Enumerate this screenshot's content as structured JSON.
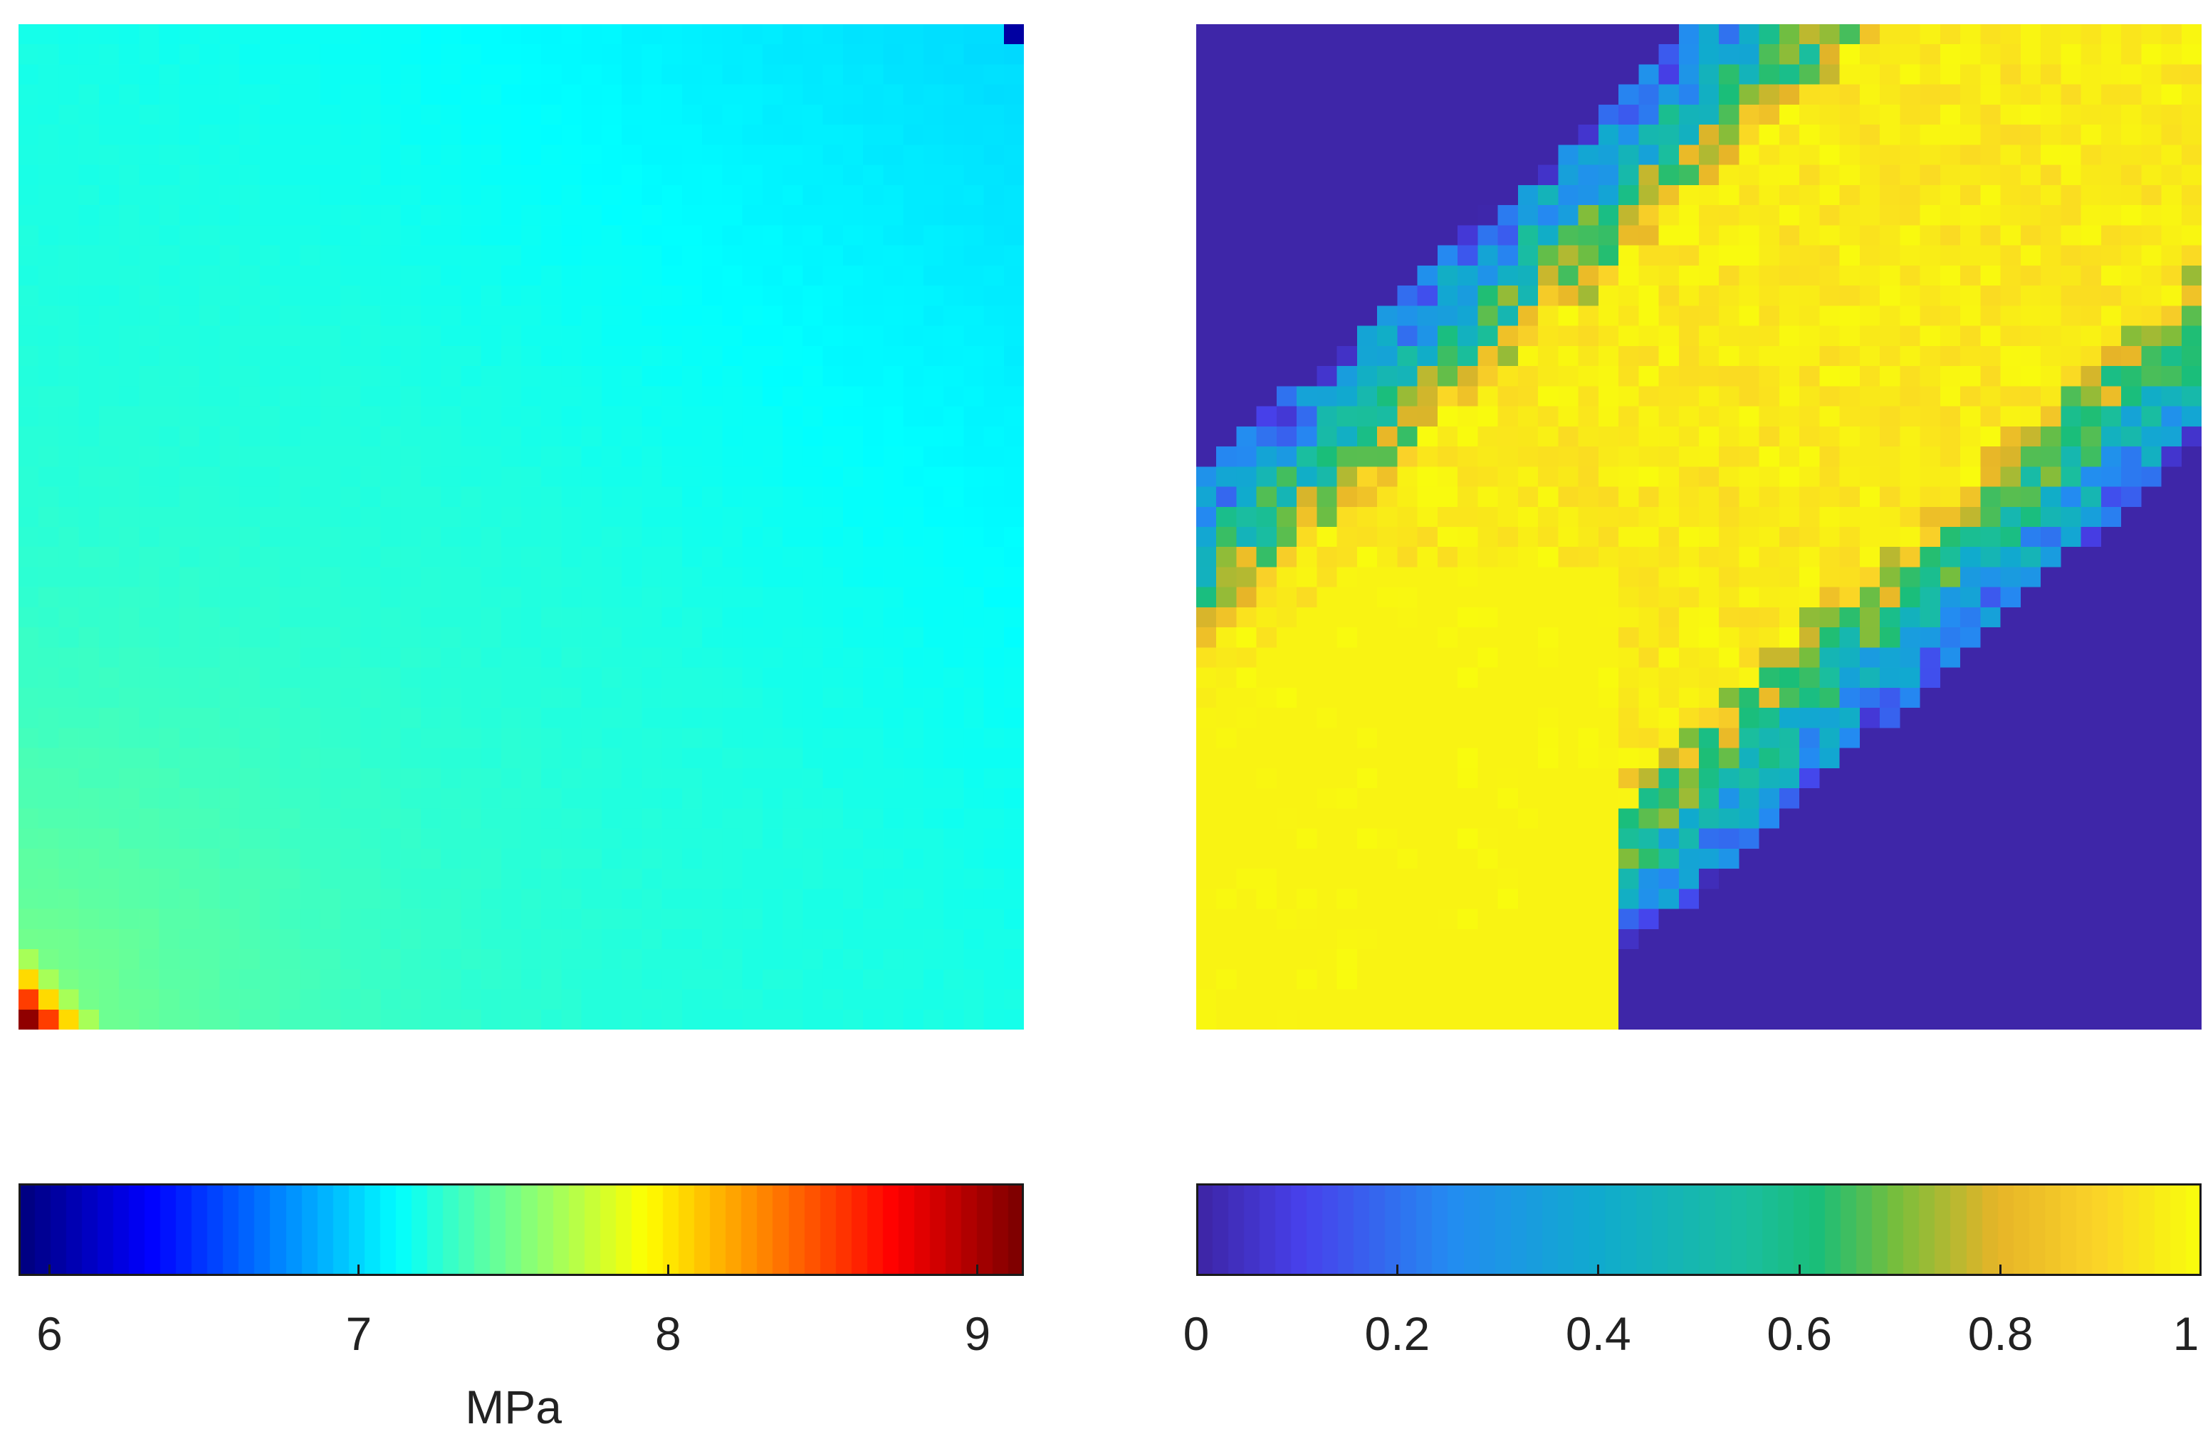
{
  "chart_data": [
    {
      "type": "heatmap",
      "grid": [
        50,
        50
      ],
      "colormap": "jet",
      "clim": [
        5.9,
        9.15
      ],
      "description_of_field": "mostly uniform ~7.1–7.2; lighter band toward upper right (~7.0); green toward lower left (~7.4–7.6); small hot spot in the bottom-left corner (up to ~9.1); single dark cell in top-right corner (~6.0)",
      "colorbar": {
        "ticks": [
          6,
          7,
          8,
          9
        ],
        "tick_labels": [
          "6",
          "7",
          "8",
          "9"
        ],
        "label": "MPa"
      }
    },
    {
      "type": "heatmap",
      "grid": [
        50,
        50
      ],
      "colormap": "parula",
      "clim": [
        0,
        1
      ],
      "description_of_field": "diagonal band of values near 1 from bottom-left to upper-right, with mixed 0.3–0.8 margins; values 0 in the top-left and bottom-right triangles",
      "colorbar": {
        "ticks": [
          0,
          0.2,
          0.4,
          0.6,
          0.8,
          1
        ],
        "tick_labels": [
          "0",
          "0.2",
          "0.4",
          "0.6",
          "0.8",
          "1"
        ],
        "label": ""
      }
    }
  ]
}
